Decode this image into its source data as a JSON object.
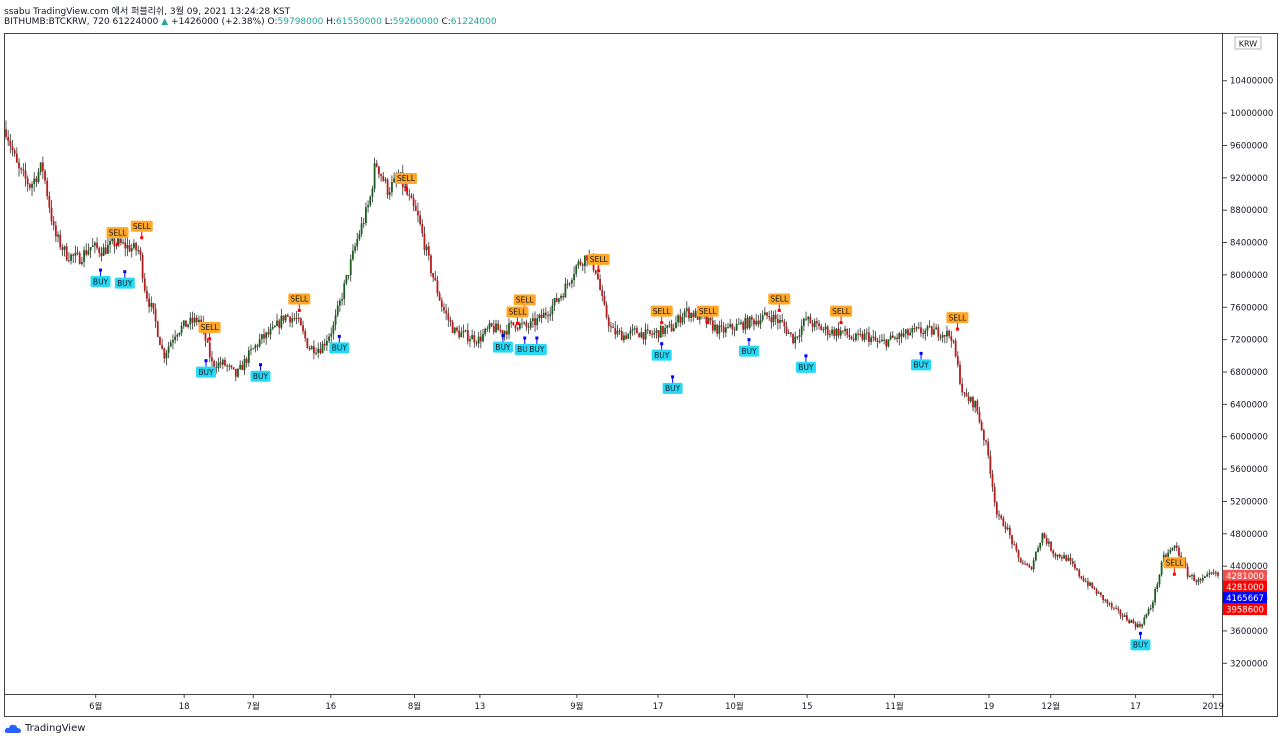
{
  "header": {
    "title": "ssabu TradingView.com 에서 퍼블리쉬, 3월 09, 2021 13:24:28 KST",
    "symbol": "BITHUMB:BTCKRW, 720",
    "last": "61224000",
    "change_arrow": "▲",
    "change": "+1426000 (+2.38%)",
    "o_label": "O:",
    "o_value": "59798000",
    "h_label": "H:",
    "h_value": "61550000",
    "l_label": "L:",
    "l_value": "59260000",
    "c_label": "C:",
    "c_value": "61224000"
  },
  "footer": {
    "brand": "TradingView"
  },
  "colors": {
    "up": "#26a69a",
    "down": "#ef5350",
    "candle_up_body": "#1b5e20",
    "candle_down_body": "#b71c1c",
    "buy_bg": "#26d9f5",
    "sell_bg": "#ffa726"
  },
  "chart_data": {
    "type": "candlestick",
    "currency": "KRW",
    "y_ticks": [
      "10400000",
      "10000000",
      "9600000",
      "9200000",
      "8800000",
      "8400000",
      "8000000",
      "7600000",
      "7200000",
      "6800000",
      "6400000",
      "6000000",
      "5600000",
      "5200000",
      "4800000",
      "4400000",
      "4000000",
      "3600000",
      "3200000"
    ],
    "y_range": [
      2820000,
      10990000
    ],
    "x_ticks": [
      {
        "label": "6월",
        "i": 0.074
      },
      {
        "label": "18",
        "i": 0.147
      },
      {
        "label": "7월",
        "i": 0.204
      },
      {
        "label": "16",
        "i": 0.268
      },
      {
        "label": "8월",
        "i": 0.337
      },
      {
        "label": "13",
        "i": 0.391
      },
      {
        "label": "9월",
        "i": 0.471
      },
      {
        "label": "17",
        "i": 0.538
      },
      {
        "label": "10월",
        "i": 0.601
      },
      {
        "label": "15",
        "i": 0.661
      },
      {
        "label": "11월",
        "i": 0.733
      },
      {
        "label": "19",
        "i": 0.811
      },
      {
        "label": "12월",
        "i": 0.862
      },
      {
        "label": "17",
        "i": 0.932
      },
      {
        "label": "2019",
        "i": 0.996
      }
    ],
    "price_tags": [
      {
        "value": "4281000",
        "price": 4281000,
        "color": "#ef5350"
      },
      {
        "value": "4281000",
        "price": 4146000,
        "color": "#ff0000"
      },
      {
        "value": "4165667",
        "price": 4010000,
        "color": "#0000ff"
      },
      {
        "value": "3958600",
        "price": 3870000,
        "color": "#ff0000"
      }
    ],
    "path": [
      [
        0.0,
        9800000
      ],
      [
        0.01,
        9300000
      ],
      [
        0.02,
        9100000
      ],
      [
        0.03,
        9350000
      ],
      [
        0.04,
        8500000
      ],
      [
        0.05,
        8250000
      ],
      [
        0.06,
        8200000
      ],
      [
        0.07,
        8350000
      ],
      [
        0.08,
        8300000
      ],
      [
        0.09,
        8400000
      ],
      [
        0.1,
        8350000
      ],
      [
        0.11,
        8300000
      ],
      [
        0.115,
        7800000
      ],
      [
        0.122,
        7500000
      ],
      [
        0.13,
        7000000
      ],
      [
        0.14,
        7300000
      ],
      [
        0.15,
        7400000
      ],
      [
        0.16,
        7450000
      ],
      [
        0.17,
        6900000
      ],
      [
        0.18,
        6900000
      ],
      [
        0.19,
        6750000
      ],
      [
        0.2,
        7000000
      ],
      [
        0.21,
        7200000
      ],
      [
        0.22,
        7300000
      ],
      [
        0.23,
        7500000
      ],
      [
        0.24,
        7450000
      ],
      [
        0.25,
        7100000
      ],
      [
        0.26,
        7100000
      ],
      [
        0.27,
        7350000
      ],
      [
        0.28,
        7900000
      ],
      [
        0.29,
        8450000
      ],
      [
        0.3,
        8900000
      ],
      [
        0.305,
        9400000
      ],
      [
        0.315,
        9050000
      ],
      [
        0.325,
        9200000
      ],
      [
        0.332,
        8950000
      ],
      [
        0.34,
        8700000
      ],
      [
        0.35,
        8100000
      ],
      [
        0.36,
        7600000
      ],
      [
        0.37,
        7300000
      ],
      [
        0.38,
        7250000
      ],
      [
        0.39,
        7200000
      ],
      [
        0.4,
        7350000
      ],
      [
        0.41,
        7300000
      ],
      [
        0.42,
        7400000
      ],
      [
        0.43,
        7350000
      ],
      [
        0.44,
        7450000
      ],
      [
        0.45,
        7600000
      ],
      [
        0.46,
        7800000
      ],
      [
        0.47,
        8100000
      ],
      [
        0.48,
        8250000
      ],
      [
        0.487,
        8050000
      ],
      [
        0.493,
        7600000
      ],
      [
        0.5,
        7300000
      ],
      [
        0.51,
        7250000
      ],
      [
        0.52,
        7300000
      ],
      [
        0.53,
        7250000
      ],
      [
        0.54,
        7300000
      ],
      [
        0.55,
        7350000
      ],
      [
        0.56,
        7550000
      ],
      [
        0.57,
        7500000
      ],
      [
        0.58,
        7400000
      ],
      [
        0.59,
        7300000
      ],
      [
        0.6,
        7350000
      ],
      [
        0.61,
        7400000
      ],
      [
        0.62,
        7450000
      ],
      [
        0.63,
        7500000
      ],
      [
        0.64,
        7400000
      ],
      [
        0.65,
        7200000
      ],
      [
        0.66,
        7450000
      ],
      [
        0.67,
        7350000
      ],
      [
        0.68,
        7300000
      ],
      [
        0.69,
        7300000
      ],
      [
        0.7,
        7200000
      ],
      [
        0.71,
        7250000
      ],
      [
        0.72,
        7150000
      ],
      [
        0.73,
        7200000
      ],
      [
        0.74,
        7250000
      ],
      [
        0.75,
        7300000
      ],
      [
        0.76,
        7300000
      ],
      [
        0.77,
        7300000
      ],
      [
        0.78,
        7250000
      ],
      [
        0.79,
        6500000
      ],
      [
        0.8,
        6400000
      ],
      [
        0.81,
        5800000
      ],
      [
        0.818,
        5000000
      ],
      [
        0.825,
        4900000
      ],
      [
        0.835,
        4500000
      ],
      [
        0.845,
        4350000
      ],
      [
        0.855,
        4800000
      ],
      [
        0.865,
        4550000
      ],
      [
        0.875,
        4500000
      ],
      [
        0.885,
        4300000
      ],
      [
        0.895,
        4150000
      ],
      [
        0.905,
        4000000
      ],
      [
        0.915,
        3850000
      ],
      [
        0.925,
        3750000
      ],
      [
        0.935,
        3650000
      ],
      [
        0.945,
        3900000
      ],
      [
        0.955,
        4500000
      ],
      [
        0.965,
        4650000
      ],
      [
        0.975,
        4300000
      ],
      [
        0.985,
        4200000
      ],
      [
        0.995,
        4300000
      ],
      [
        1.0,
        4281000
      ]
    ],
    "sell_signals": [
      {
        "text": "SELL",
        "i": 0.33,
        "price": 9050000
      },
      {
        "text": "SELL",
        "i": 0.092,
        "price": 8380000
      },
      {
        "text": "SELL",
        "i": 0.112,
        "price": 8460000
      },
      {
        "text": "SELL",
        "i": 0.242,
        "price": 7560000
      },
      {
        "text": "SELL",
        "i": 0.168,
        "price": 7210000
      },
      {
        "text": "SELL",
        "i": 0.428,
        "price": 7550000
      },
      {
        "text": "SELL",
        "i": 0.422,
        "price": 7400000
      },
      {
        "text": "SELL",
        "i": 0.489,
        "price": 8050000
      },
      {
        "text": "SELL",
        "i": 0.541,
        "price": 7410000
      },
      {
        "text": "SELL",
        "i": 0.579,
        "price": 7410000
      },
      {
        "text": "SELL",
        "i": 0.638,
        "price": 7560000
      },
      {
        "text": "SELL",
        "i": 0.689,
        "price": 7410000
      },
      {
        "text": "SELL",
        "i": 0.785,
        "price": 7330000
      },
      {
        "text": "SELL",
        "i": 0.964,
        "price": 4300000
      }
    ],
    "buy_signals": [
      {
        "text": "BUY",
        "i": 0.078,
        "price": 8060000
      },
      {
        "text": "BUY",
        "i": 0.098,
        "price": 8040000
      },
      {
        "text": "BUY",
        "i": 0.165,
        "price": 6940000
      },
      {
        "text": "BUY",
        "i": 0.21,
        "price": 6890000
      },
      {
        "text": "BUY",
        "i": 0.275,
        "price": 7240000
      },
      {
        "text": "BUY",
        "i": 0.41,
        "price": 7250000
      },
      {
        "text": "BUY",
        "i": 0.428,
        "price": 7220000
      },
      {
        "text": "BUY",
        "i": 0.438,
        "price": 7220000
      },
      {
        "text": "BUY",
        "i": 0.541,
        "price": 7150000
      },
      {
        "text": "BUY",
        "i": 0.55,
        "price": 6740000
      },
      {
        "text": "BUY",
        "i": 0.613,
        "price": 7200000
      },
      {
        "text": "BUY",
        "i": 0.66,
        "price": 7000000
      },
      {
        "text": "BUY",
        "i": 0.755,
        "price": 7030000
      },
      {
        "text": "BUY",
        "i": 0.936,
        "price": 3570000
      }
    ]
  }
}
